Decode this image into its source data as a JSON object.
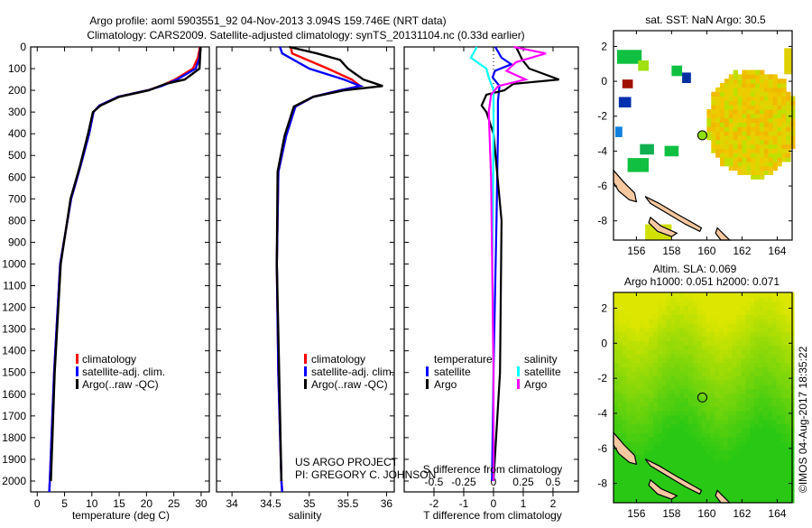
{
  "title": {
    "line1": "Argo profile: aoml 5903551_92 04-Nov-2013 3.094S 159.746E (NRT data)",
    "line2": "Climatology: CARS2009. Satellite-adjusted climatology: synTS_20131104.nc (0.33d earlier)"
  },
  "credits": {
    "line1": "US ARGO PROJECT",
    "line2": "PI: GREGORY C. JOHNSON",
    "stamp": "©IMOS 04-Aug-2017 18:35:22"
  },
  "colors": {
    "climatology": "#ff0000",
    "satellite": "#0000ff",
    "argo": "#000000",
    "sal_satellite": "#00ffff",
    "sal_argo": "#ff00ff"
  },
  "chart_data": [
    {
      "type": "line",
      "id": "temperature",
      "xlabel": "temperature (deg C)",
      "xlim": [
        -1.2,
        31.5
      ],
      "ylim": [
        2050,
        0
      ],
      "xticks": [
        "0",
        "5",
        "10",
        "15",
        "20",
        "25",
        "30"
      ],
      "yticks": [
        "0",
        "100",
        "200",
        "300",
        "400",
        "500",
        "600",
        "700",
        "800",
        "900",
        "1000",
        "1100",
        "1200",
        "1300",
        "1400",
        "1500",
        "1600",
        "1700",
        "1800",
        "1900",
        "2000"
      ],
      "legend": {
        "placement": "center-left",
        "entries": [
          "climatology",
          "satellite-adj. clim.",
          "Argo(..raw -QC)"
        ]
      },
      "series": [
        {
          "name": "climatology",
          "color": "#ff0000",
          "depth": [
            0,
            50,
            100,
            150,
            180,
            200,
            230,
            270,
            300,
            400,
            550,
            700,
            1000,
            1500,
            2000,
            2050
          ],
          "values": [
            29.8,
            29.4,
            28.5,
            25.2,
            22.6,
            20.2,
            14.8,
            11.4,
            10.3,
            9.5,
            7.9,
            6.2,
            4.2,
            3.1,
            2.3,
            2.2
          ]
        },
        {
          "name": "satellite-adj. clim.",
          "color": "#0000ff",
          "depth": [
            0,
            50,
            100,
            150,
            180,
            200,
            230,
            270,
            300,
            400,
            550,
            700,
            1000,
            1500,
            2000,
            2050
          ],
          "values": [
            29.9,
            29.7,
            29.0,
            25.6,
            22.8,
            20.2,
            14.8,
            11.4,
            10.3,
            9.5,
            7.9,
            6.2,
            4.2,
            3.1,
            2.3,
            2.2
          ]
        },
        {
          "name": "Argo(..raw -QC)",
          "color": "#000000",
          "depth": [
            0,
            50,
            100,
            150,
            170,
            200,
            230,
            270,
            300,
            400,
            550,
            700,
            1000,
            1500,
            2000
          ],
          "values": [
            29.9,
            29.8,
            29.7,
            27.0,
            23.5,
            20.4,
            15.0,
            11.6,
            10.2,
            9.3,
            7.8,
            6.1,
            4.3,
            3.2,
            2.5
          ]
        }
      ]
    },
    {
      "type": "line",
      "id": "salinity",
      "xlabel": "salinity",
      "xlim": [
        33.8,
        36.1
      ],
      "ylim": [
        2050,
        0
      ],
      "xticks": [
        "34",
        "34.5",
        "35",
        "35.5",
        "36"
      ],
      "legend": {
        "placement": "center-right",
        "entries": [
          "climatology",
          "satellite-adj. clim.",
          "Argo(..raw -QC)"
        ]
      },
      "series": [
        {
          "name": "climatology",
          "color": "#ff0000",
          "depth": [
            0,
            30,
            100,
            150,
            180,
            200,
            230,
            275,
            410,
            575,
            1000,
            1500,
            2000,
            2050
          ],
          "values": [
            34.76,
            34.78,
            35.24,
            35.55,
            35.66,
            35.4,
            35.05,
            34.82,
            34.7,
            34.6,
            34.58,
            34.6,
            34.64,
            34.65
          ]
        },
        {
          "name": "satellite-adj. clim.",
          "color": "#0000ff",
          "depth": [
            0,
            30,
            100,
            150,
            180,
            200,
            230,
            275,
            410,
            575,
            1000,
            1500,
            2000,
            2050
          ],
          "values": [
            34.62,
            34.65,
            35.0,
            35.45,
            35.66,
            35.4,
            35.05,
            34.82,
            34.7,
            34.6,
            34.58,
            34.6,
            34.64,
            34.65
          ]
        },
        {
          "name": "Argo(..raw -QC)",
          "color": "#000000",
          "depth": [
            0,
            30,
            60,
            100,
            150,
            180,
            200,
            230,
            275,
            410,
            575,
            1000,
            1500,
            2000
          ],
          "values": [
            34.74,
            35.1,
            35.4,
            35.5,
            35.7,
            35.95,
            35.45,
            35.05,
            34.8,
            34.68,
            34.59,
            34.58,
            34.61,
            34.64
          ]
        }
      ]
    },
    {
      "type": "line",
      "id": "difference",
      "xlabel": "T difference from climatology",
      "x2label": "S difference from climatology",
      "xlim": [
        -3.0,
        2.85
      ],
      "ylim": [
        2050,
        0
      ],
      "xticks": [
        "-2",
        "-1",
        "0",
        "1",
        "2"
      ],
      "x2ticks": [
        "-0.5",
        "-0.25",
        "0",
        "0.25",
        "0.5"
      ],
      "legend": {
        "placement": "center",
        "headers": [
          "temperature",
          "salinity"
        ],
        "entries": [
          "satellite",
          "Argo",
          "satellite",
          "Argo"
        ]
      },
      "series": [
        {
          "name": "T satellite",
          "var": "T",
          "color": "#0000ff",
          "depth": [
            0,
            50,
            80,
            110,
            140,
            180,
            250,
            400,
            800,
            1500,
            2000
          ],
          "values": [
            0.06,
            0.27,
            0.6,
            0.05,
            -0.03,
            0.2,
            0.15,
            0.15,
            0.1,
            0.0,
            -0.05
          ]
        },
        {
          "name": "T Argo",
          "var": "T",
          "color": "#000000",
          "depth": [
            0,
            60,
            100,
            150,
            170,
            200,
            220,
            270,
            300,
            400,
            800,
            1500,
            2000
          ],
          "values": [
            0.76,
            0.97,
            1.2,
            2.2,
            0.67,
            0.36,
            -0.24,
            -0.4,
            -0.24,
            0.0,
            0.27,
            0.22,
            0.0
          ]
        },
        {
          "name": "S satellite",
          "var": "S",
          "color": "#00ffff",
          "depth": [
            0,
            50,
            100,
            140,
            200,
            400,
            1000,
            1500,
            2000
          ],
          "values": [
            -0.14,
            -0.19,
            -0.06,
            -0.04,
            0.0,
            0.0,
            -0.01,
            0.0,
            0.0
          ]
        },
        {
          "name": "S Argo",
          "var": "S",
          "color": "#ff00ff",
          "depth": [
            0,
            30,
            70,
            110,
            150,
            180,
            220,
            300,
            600,
            1500,
            2000
          ],
          "values": [
            0.17,
            0.44,
            0.19,
            0.11,
            0.27,
            0.04,
            -0.02,
            -0.04,
            -0.02,
            0.0,
            0.0
          ]
        }
      ]
    },
    {
      "type": "heatmap",
      "id": "sst-map",
      "title": "sat. SST: NaN Argo: 30.5",
      "xlim": [
        154.7,
        164.85
      ],
      "ylim": [
        -9.1,
        2.9
      ],
      "xticks": [
        "156",
        "158",
        "160",
        "162",
        "164"
      ],
      "yticks": [
        "2",
        "0",
        "-2",
        "-4",
        "-6",
        "-8"
      ],
      "argo_position": {
        "lon": 159.746,
        "lat": -3.094
      },
      "patches": [
        {
          "lon": 154.9,
          "lat": 1.8,
          "w": 1.4,
          "h": 0.8,
          "color": "#10c040"
        },
        {
          "lon": 156.1,
          "lat": 1.2,
          "w": 0.6,
          "h": 0.6,
          "color": "#a0e010"
        },
        {
          "lon": 158.0,
          "lat": 0.9,
          "w": 0.6,
          "h": 0.6,
          "color": "#10c040"
        },
        {
          "lon": 158.6,
          "lat": 0.5,
          "w": 0.5,
          "h": 0.6,
          "color": "#0030a0"
        },
        {
          "lon": 155.2,
          "lat": 0.1,
          "w": 0.6,
          "h": 0.5,
          "color": "#a01000"
        },
        {
          "lon": 155.0,
          "lat": -0.9,
          "w": 0.7,
          "h": 0.6,
          "color": "#0030b0"
        },
        {
          "lon": 154.8,
          "lat": -2.6,
          "w": 0.4,
          "h": 0.6,
          "color": "#1080e0"
        },
        {
          "lon": 156.2,
          "lat": -3.6,
          "w": 0.8,
          "h": 0.6,
          "color": "#10b050"
        },
        {
          "lon": 157.6,
          "lat": -3.7,
          "w": 0.8,
          "h": 0.6,
          "color": "#10c040"
        },
        {
          "lon": 155.5,
          "lat": -4.4,
          "w": 1.2,
          "h": 0.8,
          "color": "#10c040"
        },
        {
          "lon": 164.4,
          "lat": 1.9,
          "w": 0.45,
          "h": 1.5,
          "color": "#e0d000"
        }
      ],
      "coastline": [
        [
          [
            154.7,
            -5.1
          ],
          [
            155.3,
            -5.8
          ],
          [
            155.9,
            -6.4
          ],
          [
            156.0,
            -6.9
          ],
          [
            155.6,
            -6.8
          ],
          [
            155.0,
            -6.3
          ],
          [
            154.7,
            -5.8
          ]
        ],
        [
          [
            156.5,
            -6.6
          ],
          [
            157.3,
            -7.0
          ],
          [
            158.3,
            -7.6
          ],
          [
            159.0,
            -8.0
          ],
          [
            159.7,
            -8.4
          ],
          [
            159.6,
            -8.6
          ],
          [
            158.8,
            -8.2
          ],
          [
            157.8,
            -7.6
          ],
          [
            156.8,
            -7.0
          ]
        ],
        [
          [
            156.8,
            -7.8
          ],
          [
            157.4,
            -8.3
          ],
          [
            158.3,
            -8.7
          ],
          [
            158.0,
            -8.9
          ],
          [
            157.2,
            -8.6
          ],
          [
            156.7,
            -8.1
          ]
        ],
        [
          [
            160.6,
            -8.4
          ],
          [
            161.0,
            -8.8
          ],
          [
            161.3,
            -9.1
          ],
          [
            160.8,
            -9.1
          ],
          [
            160.5,
            -8.7
          ]
        ]
      ]
    },
    {
      "type": "heatmap",
      "id": "sla-map",
      "title1": "Altim. SLA: 0.069",
      "title2": "Argo h1000: 0.051 h2000: 0.071",
      "xlim": [
        154.7,
        164.85
      ],
      "ylim": [
        -9.1,
        2.9
      ],
      "xticks": [
        "156",
        "158",
        "160",
        "162",
        "164"
      ],
      "yticks": [
        "2",
        "0",
        "-2",
        "-4",
        "-6",
        "-8"
      ],
      "argo_position": {
        "lon": 159.746,
        "lat": -3.094
      }
    }
  ]
}
